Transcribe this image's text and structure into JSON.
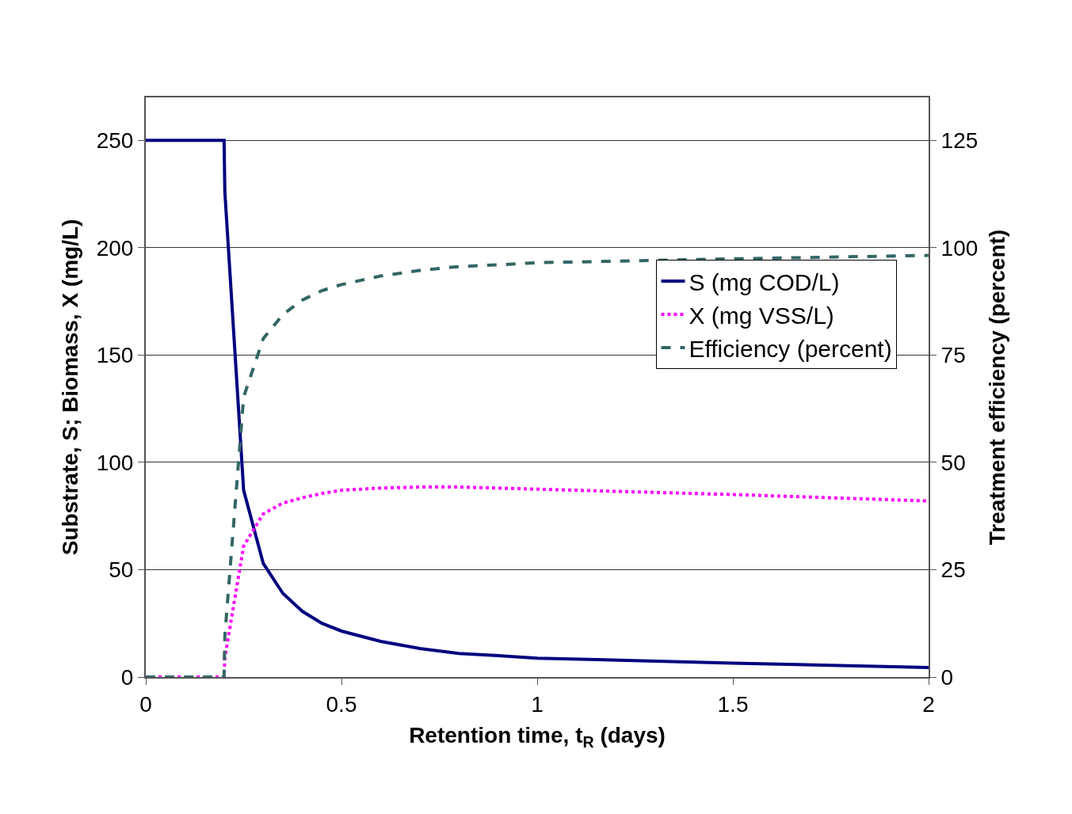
{
  "chart_data": {
    "type": "line",
    "xlabel": "Retention time, t$_{R}$ (days)",
    "ylabel": "Substrate, S; Biomass, X (mg/L)",
    "y2label": "Treatment efficiency (percent)",
    "x": [
      0,
      0.05,
      0.1,
      0.15,
      0.2,
      0.202,
      0.25,
      0.3,
      0.35,
      0.4,
      0.45,
      0.5,
      0.6,
      0.7,
      0.8,
      0.9,
      1,
      1.5,
      2
    ],
    "series": [
      {
        "name": "S (mg COD/L)",
        "color": "#000080",
        "line_style": "solid",
        "values": [
          250,
          250,
          250,
          250,
          250,
          226,
          87,
          53,
          39,
          30.6,
          25,
          21.4,
          16.6,
          13.3,
          11,
          10,
          8.8,
          6.5,
          4.4
        ]
      },
      {
        "name": "X (mg VSS/L)",
        "color": "#ff00ff",
        "line_style": "dotted",
        "values": [
          0,
          0,
          0,
          0,
          0,
          9,
          61,
          76,
          81,
          83.5,
          85.5,
          87,
          88,
          88.5,
          88.5,
          88,
          87.5,
          85,
          82
        ]
      },
      {
        "name": "Efficiency (percent)",
        "color": "#336666",
        "line_style": "dashed",
        "axis": "y2",
        "values": [
          0,
          0,
          0,
          0,
          0,
          9.6,
          65.2,
          78.8,
          84.4,
          87.8,
          90,
          91.4,
          93.4,
          94.7,
          95.6,
          96,
          96.5,
          97.4,
          98.2
        ]
      }
    ],
    "xlim": [
      0,
      2
    ],
    "xticks": [
      0,
      0.5,
      1,
      1.5,
      2
    ],
    "ylim": [
      0,
      270
    ],
    "yticks": [
      0,
      50,
      100,
      150,
      200,
      250
    ],
    "y2lim": [
      0,
      135
    ],
    "y2ticks": [
      0,
      25,
      50,
      75,
      100,
      125
    ],
    "grid": "y",
    "legend": "right",
    "marker": "none"
  }
}
